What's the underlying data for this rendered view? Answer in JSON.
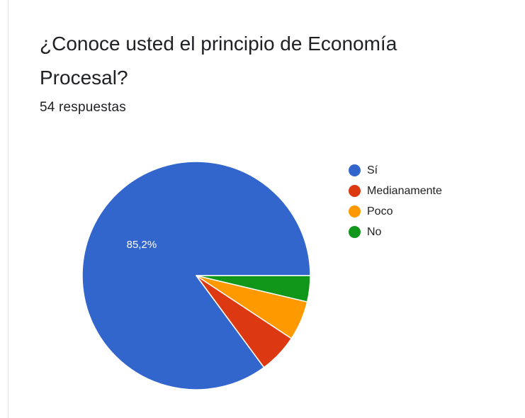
{
  "question": {
    "title": "¿Conoce usted el principio de Economía Procesal?",
    "responses": "54 respuestas"
  },
  "chart_data": {
    "type": "pie",
    "title": "¿Conoce usted el principio de Economía Procesal?",
    "categories": [
      "Sí",
      "Medianamente",
      "Poco",
      "No"
    ],
    "values": [
      85.2,
      5.6,
      5.6,
      3.7
    ],
    "colors": [
      "#3366cc",
      "#dc3912",
      "#ff9900",
      "#109618"
    ],
    "data_labels": [
      "85,2%",
      "",
      "",
      ""
    ],
    "start_angle_deg": 0,
    "direction": "counterclockwise",
    "legend_position": "right"
  }
}
